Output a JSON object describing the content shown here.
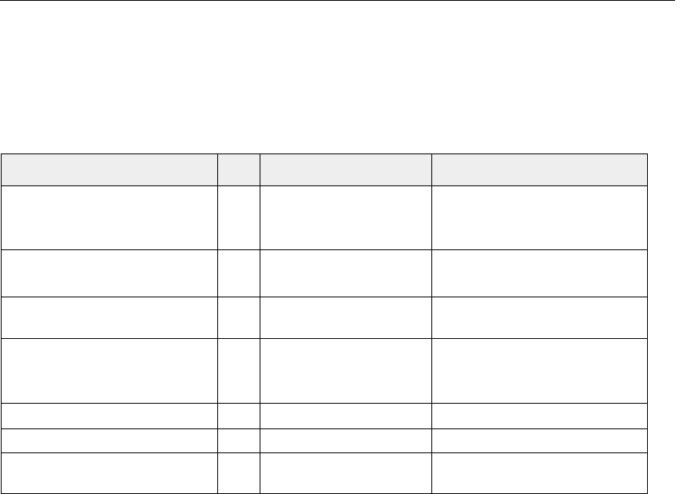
{
  "table": {
    "columns": [
      "",
      "",
      "",
      ""
    ],
    "rows": [
      [
        "",
        "",
        "",
        ""
      ],
      [
        "",
        "",
        "",
        ""
      ],
      [
        "",
        "",
        "",
        ""
      ],
      [
        "",
        "",
        "",
        ""
      ],
      [
        "",
        "",
        "",
        ""
      ],
      [
        "",
        "",
        "",
        ""
      ],
      [
        "",
        "",
        "",
        ""
      ]
    ],
    "header_bg": "#eeeeee"
  }
}
